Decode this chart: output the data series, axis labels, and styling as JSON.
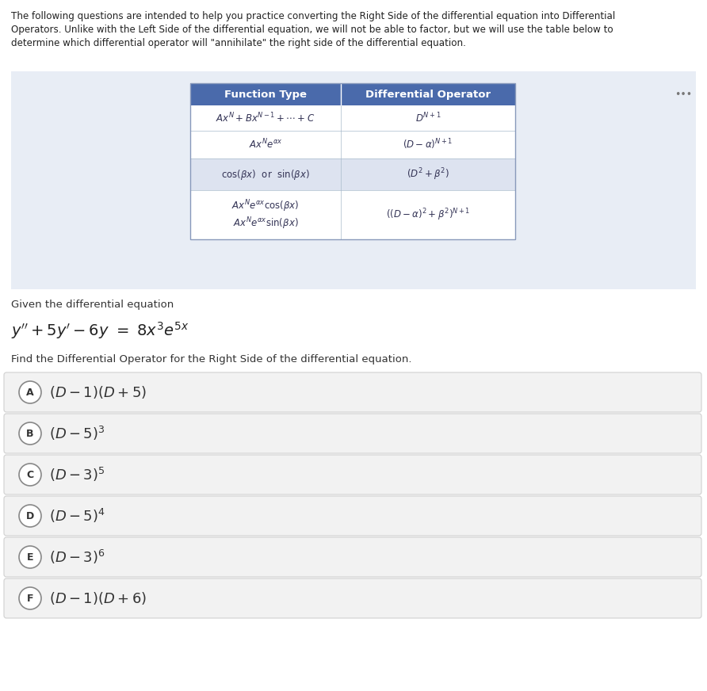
{
  "bg_color": "#ffffff",
  "panel_bg": "#e8edf5",
  "intro_lines": [
    "The following questions are intended to help you practice converting the Right Side of the differential equation into Differential",
    "Operators. Unlike with the Left Side of the differential equation, we will not be able to factor, but we will use the table below to",
    "determine which differential operator will \"annihilate\" the right side of the differential equation."
  ],
  "table_header_bg": "#4a6aab",
  "table_header_color": "#ffffff",
  "table_col1": "Function Type",
  "table_col2": "Differential Operator",
  "table_row_bg_odd": "#dde3f0",
  "table_row_bg_even": "#ffffff",
  "table_border": "#8899bb",
  "table_rows": [
    {
      "func": "$Ax^N + Bx^{N-1} + \\cdots + C$",
      "op": "$D^{N+1}$",
      "shade": false
    },
    {
      "func": "$Ax^Ne^{\\alpha x}$",
      "op": "$(D-\\alpha)^{N+1}$",
      "shade": false
    },
    {
      "func": "$\\cos(\\beta x)$  or  $\\sin(\\beta x)$",
      "op": "$(D^2+\\beta^2)$",
      "shade": true
    },
    {
      "func": "$Ax^Ne^{\\alpha x}\\cos(\\beta x)$||$Ax^Ne^{\\alpha x}\\sin(\\beta x)$",
      "op": "$((D-\\alpha)^2+\\beta^2)^{N+1}$",
      "shade": false
    }
  ],
  "given_label": "Given the differential equation",
  "equation": "$y'' + 5y' - 6y \\ = \\ 8x^3e^{5x}$",
  "find_label": "Find the Differential Operator for the Right Side of the differential equation.",
  "choices": [
    {
      "label": "A",
      "text": "$(D-1)(D+5)$"
    },
    {
      "label": "B",
      "text": "$(D-5)^3$"
    },
    {
      "label": "C",
      "text": "$(D-3)^5$"
    },
    {
      "label": "D",
      "text": "$(D-5)^4$"
    },
    {
      "label": "E",
      "text": "$(D-3)^6$"
    },
    {
      "label": "F",
      "text": "$(D-1)(D+6)$"
    }
  ],
  "choice_bg": "#f2f2f2",
  "choice_border": "#d0d0d0",
  "dots_color": "#777777"
}
